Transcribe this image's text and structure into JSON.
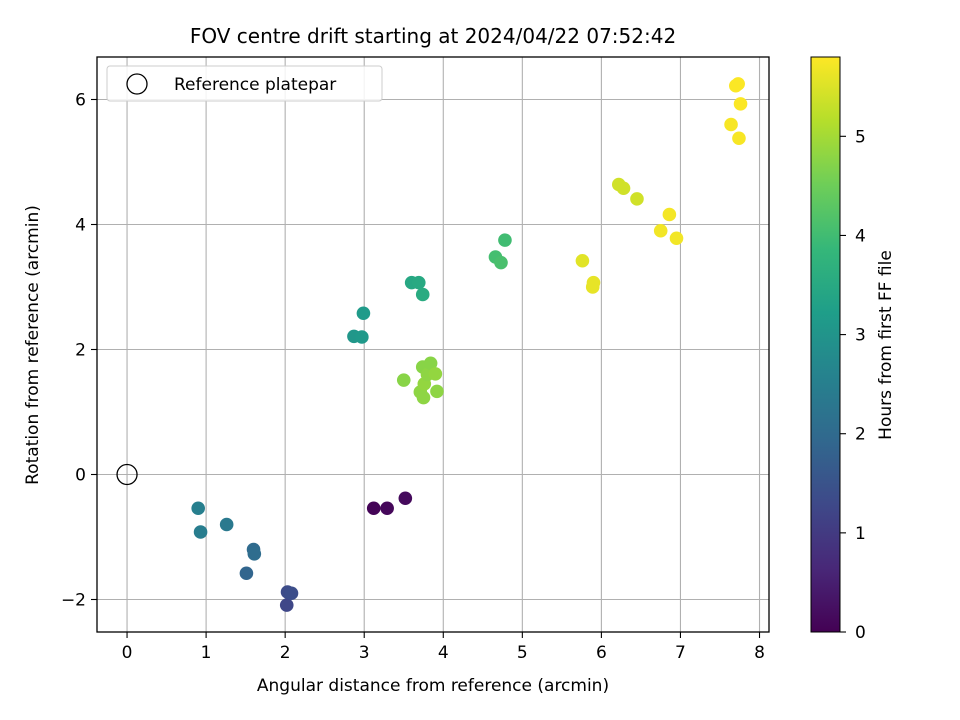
{
  "chart_data": {
    "type": "scatter",
    "title": "FOV centre drift starting at 2024/04/22 07:52:42",
    "xlabel": "Angular distance from reference (arcmin)",
    "ylabel": "Rotation from reference (arcmin)",
    "xlim": [
      -0.38,
      8.12
    ],
    "ylim": [
      -2.52,
      6.68
    ],
    "xticks": [
      0,
      1,
      2,
      3,
      4,
      5,
      6,
      7,
      8
    ],
    "yticks": [
      -2,
      0,
      2,
      4,
      6
    ],
    "xtick_labels": [
      "0",
      "1",
      "2",
      "3",
      "4",
      "5",
      "6",
      "7",
      "8"
    ],
    "ytick_labels": [
      "−2",
      "0",
      "2",
      "4",
      "6"
    ],
    "grid": true,
    "legend": {
      "placement": "top-left",
      "entries": [
        {
          "label": "Reference platepar",
          "marker": "open-circle",
          "x": 0,
          "y": 0
        }
      ]
    },
    "colorbar": {
      "label": "Hours from first FF file",
      "colormap": "viridis",
      "range": [
        0,
        5.8
      ],
      "ticks": [
        0,
        1,
        2,
        3,
        4,
        5
      ],
      "tick_labels": [
        "0",
        "1",
        "2",
        "3",
        "4",
        "5"
      ],
      "stops": [
        "#440154",
        "#482878",
        "#3e4989",
        "#31688e",
        "#26828e",
        "#1f9e89",
        "#35b779",
        "#6ece58",
        "#b5de2b",
        "#fde725"
      ]
    },
    "points": [
      {
        "x": 3.12,
        "y": -0.54,
        "c": 0.05
      },
      {
        "x": 3.29,
        "y": -0.54,
        "c": 0.1
      },
      {
        "x": 3.52,
        "y": -0.38,
        "c": 0.15
      },
      {
        "x": 2.02,
        "y": -2.09,
        "c": 1.25
      },
      {
        "x": 2.03,
        "y": -1.88,
        "c": 1.35
      },
      {
        "x": 2.08,
        "y": -1.9,
        "c": 1.4
      },
      {
        "x": 1.51,
        "y": -1.58,
        "c": 1.9
      },
      {
        "x": 1.6,
        "y": -1.2,
        "c": 2.0
      },
      {
        "x": 1.61,
        "y": -1.27,
        "c": 2.05
      },
      {
        "x": 1.26,
        "y": -0.8,
        "c": 2.35
      },
      {
        "x": 0.93,
        "y": -0.92,
        "c": 2.45
      },
      {
        "x": 0.9,
        "y": -0.54,
        "c": 2.5
      },
      {
        "x": 2.87,
        "y": 2.21,
        "c": 3.05
      },
      {
        "x": 2.97,
        "y": 2.2,
        "c": 3.1
      },
      {
        "x": 2.99,
        "y": 2.58,
        "c": 3.15
      },
      {
        "x": 3.6,
        "y": 3.07,
        "c": 3.45
      },
      {
        "x": 3.69,
        "y": 3.07,
        "c": 3.5
      },
      {
        "x": 3.74,
        "y": 2.88,
        "c": 3.55
      },
      {
        "x": 4.66,
        "y": 3.48,
        "c": 4.05
      },
      {
        "x": 4.73,
        "y": 3.39,
        "c": 4.1
      },
      {
        "x": 4.78,
        "y": 3.75,
        "c": 4.0
      },
      {
        "x": 3.5,
        "y": 1.51,
        "c": 4.75
      },
      {
        "x": 3.71,
        "y": 1.32,
        "c": 4.8
      },
      {
        "x": 3.74,
        "y": 1.72,
        "c": 4.75
      },
      {
        "x": 3.75,
        "y": 1.23,
        "c": 4.8
      },
      {
        "x": 3.76,
        "y": 1.45,
        "c": 4.85
      },
      {
        "x": 3.8,
        "y": 1.6,
        "c": 4.8
      },
      {
        "x": 3.84,
        "y": 1.78,
        "c": 4.75
      },
      {
        "x": 3.9,
        "y": 1.61,
        "c": 4.85
      },
      {
        "x": 3.92,
        "y": 1.33,
        "c": 4.8
      },
      {
        "x": 5.76,
        "y": 3.42,
        "c": 5.55
      },
      {
        "x": 5.89,
        "y": 3.0,
        "c": 5.6
      },
      {
        "x": 5.9,
        "y": 3.07,
        "c": 5.6
      },
      {
        "x": 6.22,
        "y": 4.64,
        "c": 5.4
      },
      {
        "x": 6.28,
        "y": 4.58,
        "c": 5.4
      },
      {
        "x": 6.45,
        "y": 4.41,
        "c": 5.4
      },
      {
        "x": 6.75,
        "y": 3.9,
        "c": 5.7
      },
      {
        "x": 6.86,
        "y": 4.16,
        "c": 5.72
      },
      {
        "x": 6.95,
        "y": 3.78,
        "c": 5.7
      },
      {
        "x": 7.64,
        "y": 5.6,
        "c": 5.75
      },
      {
        "x": 7.7,
        "y": 6.22,
        "c": 5.78
      },
      {
        "x": 7.73,
        "y": 6.25,
        "c": 5.78
      },
      {
        "x": 7.74,
        "y": 5.38,
        "c": 5.75
      },
      {
        "x": 7.76,
        "y": 5.93,
        "c": 5.78
      }
    ]
  }
}
